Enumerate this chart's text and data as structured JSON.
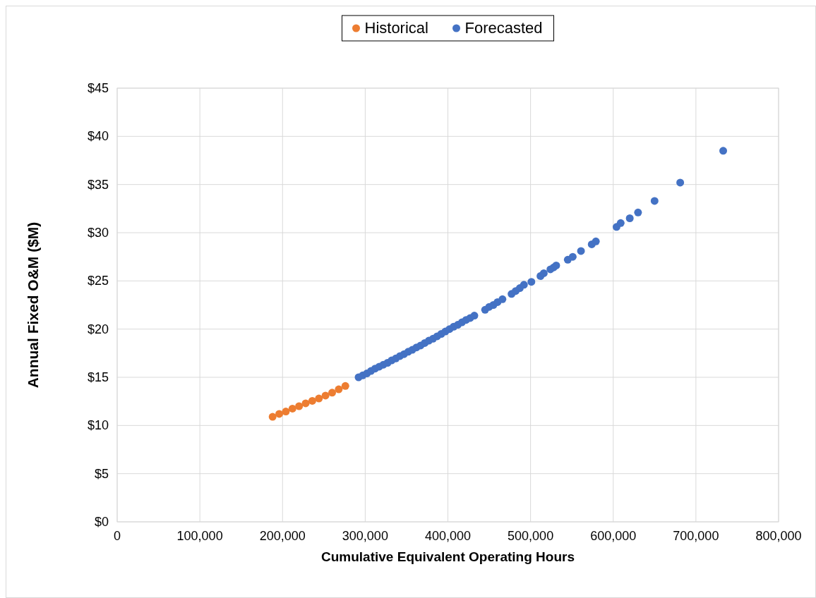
{
  "chart_data": {
    "type": "scatter",
    "xlabel": "Cumulative Equivalent Operating Hours",
    "ylabel": "Annual Fixed O&M ($M)",
    "xlim": [
      0,
      800000
    ],
    "xticks": [
      {
        "value": 0,
        "label": "0"
      },
      {
        "value": 100000,
        "label": "100,000"
      },
      {
        "value": 200000,
        "label": "200,000"
      },
      {
        "value": 300000,
        "label": "300,000"
      },
      {
        "value": 400000,
        "label": "400,000"
      },
      {
        "value": 500000,
        "label": "500,000"
      },
      {
        "value": 600000,
        "label": "600,000"
      },
      {
        "value": 700000,
        "label": "700,000"
      },
      {
        "value": 800000,
        "label": "800,000"
      }
    ],
    "ylim": [
      0,
      45
    ],
    "yticks": [
      {
        "value": 0,
        "label": "$0"
      },
      {
        "value": 5,
        "label": "$5"
      },
      {
        "value": 10,
        "label": "$10"
      },
      {
        "value": 15,
        "label": "$15"
      },
      {
        "value": 20,
        "label": "$20"
      },
      {
        "value": 25,
        "label": "$25"
      },
      {
        "value": 30,
        "label": "$30"
      },
      {
        "value": 35,
        "label": "$35"
      },
      {
        "value": 40,
        "label": "$40"
      },
      {
        "value": 45,
        "label": "$45"
      }
    ],
    "grid": true,
    "legend": "top",
    "marker": "circle",
    "series": [
      {
        "name": "Historical",
        "color": "#ed7d31",
        "x": [
          188000,
          196000,
          204000,
          212000,
          220000,
          228000,
          236000,
          244000,
          252000,
          260000,
          268000,
          276000
        ],
        "values": [
          10.9,
          11.2,
          11.45,
          11.75,
          12.0,
          12.3,
          12.55,
          12.8,
          13.1,
          13.4,
          13.75,
          14.1
        ]
      },
      {
        "name": "Forecasted",
        "color": "#4472c4",
        "x": [
          292000,
          297000,
          302000,
          307000,
          312000,
          317000,
          322000,
          327000,
          332000,
          337000,
          342000,
          347000,
          352000,
          357000,
          362000,
          367000,
          372000,
          377000,
          382000,
          387000,
          392000,
          397000,
          402000,
          407000,
          412000,
          417000,
          422000,
          427000,
          432000,
          445000,
          450000,
          455000,
          460000,
          466000,
          477000,
          482000,
          487000,
          492000,
          501000,
          512000,
          516000,
          524000,
          528000,
          531000,
          545000,
          551000,
          561000,
          574000,
          579000,
          604000,
          609000,
          620000,
          630000,
          650000,
          681000,
          733000
        ],
        "values": [
          15.0,
          15.2,
          15.4,
          15.65,
          15.9,
          16.1,
          16.3,
          16.5,
          16.75,
          16.95,
          17.2,
          17.4,
          17.65,
          17.85,
          18.1,
          18.3,
          18.55,
          18.8,
          19.0,
          19.25,
          19.5,
          19.75,
          20.0,
          20.25,
          20.45,
          20.7,
          20.95,
          21.15,
          21.4,
          22.0,
          22.3,
          22.5,
          22.8,
          23.1,
          23.65,
          23.95,
          24.25,
          24.6,
          24.9,
          25.5,
          25.8,
          26.2,
          26.4,
          26.6,
          27.2,
          27.5,
          28.1,
          28.8,
          29.1,
          30.6,
          31.0,
          31.5,
          32.1,
          33.3,
          35.2,
          38.5
        ]
      }
    ]
  }
}
